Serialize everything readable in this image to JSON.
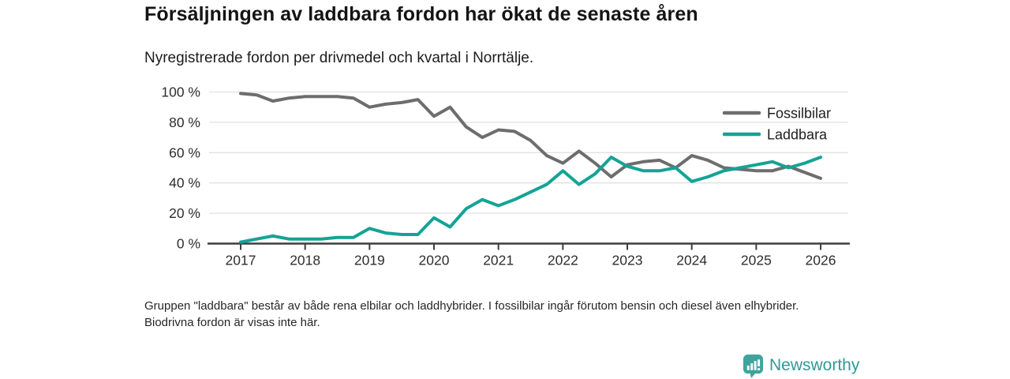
{
  "header": {
    "title": "Försäljningen av laddbara fordon har ökat de senaste åren",
    "subtitle": "Nyregistrerade fordon per drivmedel och kvartal i Norrtälje."
  },
  "chart_data": {
    "type": "line",
    "frequency": "quarterly",
    "x_start": "2017-Q1",
    "x_tick_labels": [
      "2017",
      "2018",
      "2019",
      "2020",
      "2021",
      "2022",
      "2023",
      "2024",
      "2025",
      "2026"
    ],
    "yticks": [
      0,
      20,
      40,
      60,
      80,
      100
    ],
    "ytick_suffix": " %",
    "ylim": [
      0,
      100
    ],
    "grid": "horizontal",
    "legend_position": "top-right",
    "series": [
      {
        "name": "Fossilbilar",
        "color": "#6d6d6d",
        "values": [
          99,
          98,
          94,
          96,
          97,
          97,
          97,
          96,
          90,
          92,
          93,
          95,
          84,
          90,
          77,
          70,
          75,
          74,
          68,
          58,
          53,
          61,
          53,
          44,
          52,
          54,
          55,
          50,
          58,
          55,
          50,
          49,
          48,
          48,
          51,
          47,
          43
        ]
      },
      {
        "name": "Laddbara",
        "color": "#14a396",
        "values": [
          1,
          3,
          5,
          3,
          3,
          3,
          4,
          4,
          10,
          7,
          6,
          6,
          17,
          11,
          23,
          29,
          25,
          29,
          34,
          39,
          48,
          39,
          46,
          57,
          51,
          48,
          48,
          50,
          41,
          44,
          48,
          50,
          52,
          54,
          50,
          53,
          57
        ]
      }
    ]
  },
  "footnote": {
    "text": "Gruppen \"laddbara\" består av både rena elbilar och laddhybrider. I fossilbilar ingår förutom bensin och diesel även elhybrider. Biodrivna fordon är visas inte här."
  },
  "branding": {
    "name": "Newsworthy",
    "color": "#2f9a94",
    "icon_color": "#3ea49e",
    "icon": "bar-chart-speech-bubble-icon"
  }
}
